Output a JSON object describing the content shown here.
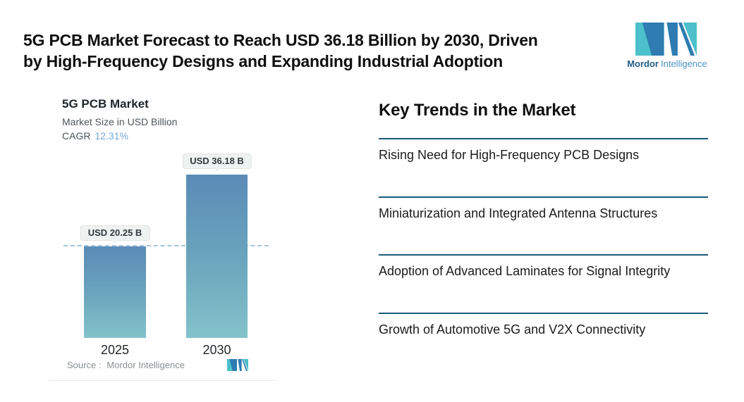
{
  "header": {
    "title_line1": "5G PCB Market Forecast to Reach USD 36.18 Billion by 2030, Driven",
    "title_line2": "by High-Frequency Designs and Expanding Industrial Adoption"
  },
  "brand": {
    "name_bold": "Mordor",
    "name_light": "Intelligence"
  },
  "chart": {
    "title": "5G PCB Market",
    "subtitle": "Market Size in USD Billion",
    "cagr_label": "CAGR",
    "cagr_value": "12.31%",
    "source_label": "Source :",
    "source_value": "Mordor Intelligence"
  },
  "chart_data": {
    "type": "bar",
    "title": "5G PCB Market",
    "ylabel": "Market Size in USD Billion",
    "cagr": "12.31%",
    "categories": [
      "2025",
      "2030"
    ],
    "values": [
      20.25,
      36.18
    ],
    "value_labels": [
      "USD 20.25 B",
      "USD 36.18 B"
    ],
    "ylim": [
      0,
      40
    ],
    "grid": false,
    "legend": "none",
    "reference_line_at": 20.25,
    "bar_gradient_top": "#5a8bb7",
    "bar_gradient_bottom": "#82c3ca",
    "dashed_line_color": "#a2c4e2"
  },
  "trends": {
    "heading": "Key Trends in the Market",
    "items": [
      "Rising Need for High-Frequency PCB Designs",
      "Miniaturization and Integrated Antenna Structures",
      "Adoption of Advanced Laminates for Signal Integrity",
      "Growth of Automotive 5G and V2X Connectivity"
    ]
  },
  "colors": {
    "accent_rule": "#1c5a7c",
    "cagr_blue": "#74a9dc",
    "brand_dark_blue": "#2e7cb2",
    "brand_teal": "#4cc0cb",
    "brand_text_dark": "#1f5c86",
    "brand_text_light": "#4b94c4"
  }
}
